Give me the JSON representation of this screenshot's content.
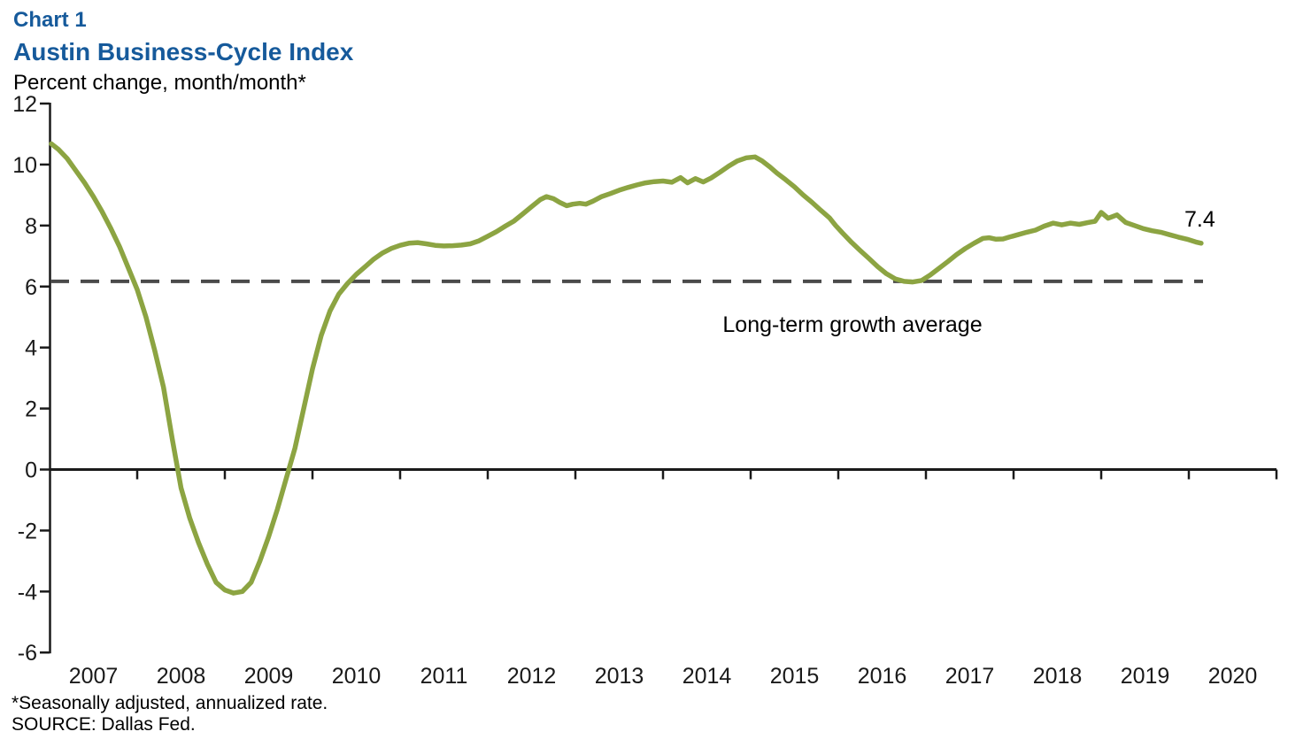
{
  "page": {
    "title_line1": "Chart 1",
    "title_line2": "Austin Business-Cycle Index",
    "subtitle": "Percent change, month/month*",
    "footnote1": "*Seasonally adjusted, annualized rate.",
    "footnote2": "SOURCE: Dallas Fed."
  },
  "colors": {
    "title_blue": "#165A9B",
    "line_green": "#8CA442",
    "dash_gray": "#4A4A4A",
    "axis_black": "#1A1A1A",
    "text_black": "#000000"
  },
  "chart_data": {
    "type": "line",
    "title": "Austin Business-Cycle Index",
    "subtitle": "Percent change, month/month*",
    "x_unit": "decimal_year",
    "xlim": [
      2007,
      2021
    ],
    "ylim": [
      -6,
      12
    ],
    "grid": false,
    "legend_position": "none",
    "y_ticks": [
      12,
      10,
      8,
      6,
      4,
      2,
      0,
      -2,
      -4,
      -6
    ],
    "x_tick_labels": [
      "2007",
      "2008",
      "2009",
      "2010",
      "2011",
      "2012",
      "2013",
      "2014",
      "2015",
      "2016",
      "2017",
      "2018",
      "2019",
      "2020"
    ],
    "average_line": {
      "value": 6.17,
      "label": "Long-term growth average"
    },
    "end_label": "7.4",
    "series": [
      {
        "name": "Austin Business-Cycle Index",
        "points": [
          [
            2007.02,
            10.68
          ],
          [
            2007.1,
            10.5
          ],
          [
            2007.2,
            10.2
          ],
          [
            2007.3,
            9.8
          ],
          [
            2007.4,
            9.4
          ],
          [
            2007.5,
            8.95
          ],
          [
            2007.6,
            8.45
          ],
          [
            2007.7,
            7.9
          ],
          [
            2007.8,
            7.3
          ],
          [
            2007.9,
            6.6
          ],
          [
            2008.0,
            5.9
          ],
          [
            2008.1,
            5.0
          ],
          [
            2008.2,
            3.9
          ],
          [
            2008.3,
            2.7
          ],
          [
            2008.4,
            1.0
          ],
          [
            2008.5,
            -0.6
          ],
          [
            2008.6,
            -1.6
          ],
          [
            2008.7,
            -2.4
          ],
          [
            2008.8,
            -3.1
          ],
          [
            2008.9,
            -3.7
          ],
          [
            2009.0,
            -3.95
          ],
          [
            2009.1,
            -4.05
          ],
          [
            2009.2,
            -4.0
          ],
          [
            2009.3,
            -3.7
          ],
          [
            2009.4,
            -3.0
          ],
          [
            2009.5,
            -2.2
          ],
          [
            2009.6,
            -1.3
          ],
          [
            2009.7,
            -0.3
          ],
          [
            2009.8,
            0.7
          ],
          [
            2009.9,
            2.0
          ],
          [
            2010.0,
            3.3
          ],
          [
            2010.1,
            4.4
          ],
          [
            2010.2,
            5.2
          ],
          [
            2010.3,
            5.75
          ],
          [
            2010.4,
            6.1
          ],
          [
            2010.5,
            6.4
          ],
          [
            2010.6,
            6.65
          ],
          [
            2010.7,
            6.9
          ],
          [
            2010.8,
            7.1
          ],
          [
            2010.9,
            7.25
          ],
          [
            2011.0,
            7.35
          ],
          [
            2011.1,
            7.42
          ],
          [
            2011.2,
            7.44
          ],
          [
            2011.3,
            7.4
          ],
          [
            2011.4,
            7.35
          ],
          [
            2011.5,
            7.33
          ],
          [
            2011.6,
            7.34
          ],
          [
            2011.7,
            7.36
          ],
          [
            2011.8,
            7.4
          ],
          [
            2011.9,
            7.5
          ],
          [
            2012.0,
            7.65
          ],
          [
            2012.1,
            7.8
          ],
          [
            2012.2,
            7.98
          ],
          [
            2012.3,
            8.15
          ],
          [
            2012.4,
            8.38
          ],
          [
            2012.5,
            8.62
          ],
          [
            2012.6,
            8.85
          ],
          [
            2012.67,
            8.95
          ],
          [
            2012.75,
            8.88
          ],
          [
            2012.82,
            8.76
          ],
          [
            2012.9,
            8.65
          ],
          [
            2012.97,
            8.7
          ],
          [
            2013.05,
            8.73
          ],
          [
            2013.12,
            8.7
          ],
          [
            2013.2,
            8.8
          ],
          [
            2013.3,
            8.95
          ],
          [
            2013.4,
            9.05
          ],
          [
            2013.5,
            9.16
          ],
          [
            2013.6,
            9.25
          ],
          [
            2013.7,
            9.33
          ],
          [
            2013.8,
            9.4
          ],
          [
            2013.9,
            9.44
          ],
          [
            2014.0,
            9.46
          ],
          [
            2014.1,
            9.42
          ],
          [
            2014.2,
            9.57
          ],
          [
            2014.28,
            9.4
          ],
          [
            2014.37,
            9.54
          ],
          [
            2014.46,
            9.43
          ],
          [
            2014.55,
            9.56
          ],
          [
            2014.65,
            9.75
          ],
          [
            2014.75,
            9.95
          ],
          [
            2014.85,
            10.12
          ],
          [
            2014.95,
            10.22
          ],
          [
            2015.05,
            10.25
          ],
          [
            2015.13,
            10.12
          ],
          [
            2015.22,
            9.92
          ],
          [
            2015.3,
            9.72
          ],
          [
            2015.4,
            9.5
          ],
          [
            2015.5,
            9.27
          ],
          [
            2015.6,
            9.0
          ],
          [
            2015.7,
            8.76
          ],
          [
            2015.8,
            8.5
          ],
          [
            2015.9,
            8.25
          ],
          [
            2015.97,
            8.0
          ],
          [
            2016.05,
            7.75
          ],
          [
            2016.15,
            7.45
          ],
          [
            2016.25,
            7.18
          ],
          [
            2016.35,
            6.92
          ],
          [
            2016.45,
            6.65
          ],
          [
            2016.55,
            6.42
          ],
          [
            2016.65,
            6.25
          ],
          [
            2016.75,
            6.17
          ],
          [
            2016.85,
            6.15
          ],
          [
            2016.95,
            6.2
          ],
          [
            2017.05,
            6.38
          ],
          [
            2017.15,
            6.6
          ],
          [
            2017.25,
            6.82
          ],
          [
            2017.35,
            7.05
          ],
          [
            2017.45,
            7.25
          ],
          [
            2017.55,
            7.42
          ],
          [
            2017.65,
            7.58
          ],
          [
            2017.72,
            7.6
          ],
          [
            2017.8,
            7.55
          ],
          [
            2017.88,
            7.56
          ],
          [
            2017.95,
            7.62
          ],
          [
            2018.05,
            7.7
          ],
          [
            2018.15,
            7.78
          ],
          [
            2018.25,
            7.85
          ],
          [
            2018.35,
            7.98
          ],
          [
            2018.45,
            8.08
          ],
          [
            2018.55,
            8.02
          ],
          [
            2018.65,
            8.08
          ],
          [
            2018.75,
            8.04
          ],
          [
            2018.85,
            8.1
          ],
          [
            2018.93,
            8.14
          ],
          [
            2019.0,
            8.43
          ],
          [
            2019.08,
            8.24
          ],
          [
            2019.18,
            8.35
          ],
          [
            2019.28,
            8.1
          ],
          [
            2019.38,
            8.0
          ],
          [
            2019.48,
            7.9
          ],
          [
            2019.58,
            7.83
          ],
          [
            2019.68,
            7.78
          ],
          [
            2019.78,
            7.7
          ],
          [
            2019.88,
            7.62
          ],
          [
            2019.98,
            7.55
          ],
          [
            2020.08,
            7.46
          ],
          [
            2020.14,
            7.42
          ]
        ]
      }
    ]
  }
}
